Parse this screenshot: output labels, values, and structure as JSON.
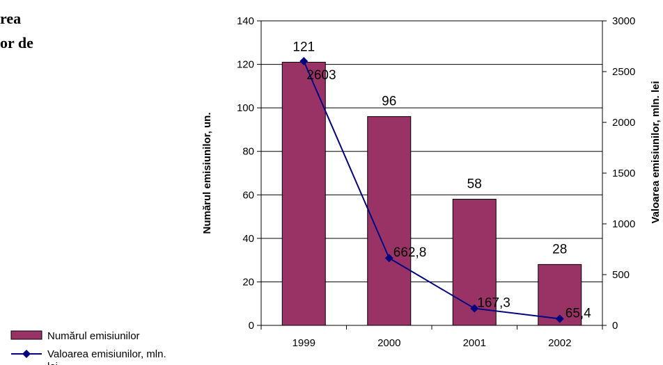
{
  "document_text": {
    "line1": "rea",
    "line2": "or  de"
  },
  "chart_data": {
    "type": "bar",
    "categories": [
      "1999",
      "2000",
      "2001",
      "2002"
    ],
    "series": [
      {
        "name": "Numărul emisiunilor",
        "type": "bar",
        "axis": "left",
        "values": [
          121,
          96,
          58,
          28
        ],
        "labels": [
          "121",
          "96",
          "58",
          "28"
        ],
        "color": "#993366"
      },
      {
        "name": "Valoarea emisiunilor, mln. lei",
        "type": "line",
        "axis": "right",
        "values": [
          2603,
          662.8,
          167.3,
          65.4
        ],
        "labels": [
          "2603",
          "662,8",
          "167,3",
          "65,4"
        ],
        "color": "#000080"
      }
    ],
    "y_left": {
      "label": "Numărul emisiunilor, un.",
      "range": [
        0,
        140
      ],
      "ticks": [
        0,
        20,
        40,
        60,
        80,
        100,
        120,
        140
      ]
    },
    "y_right": {
      "label": "Valoarea emisiunilor, mln. lei",
      "range": [
        0,
        3000
      ],
      "ticks": [
        0,
        500,
        1000,
        1500,
        2000,
        2500,
        3000
      ]
    },
    "grid": true,
    "legend": {
      "position": "left",
      "entries": [
        {
          "label": "Numărul emisiunilor",
          "line1": "Numărul emisiunilor"
        },
        {
          "label": "Valoarea emisiunilor, mln. lei",
          "line1": "Valoarea emisiunilor, mln.",
          "line2": "lei"
        }
      ]
    }
  }
}
